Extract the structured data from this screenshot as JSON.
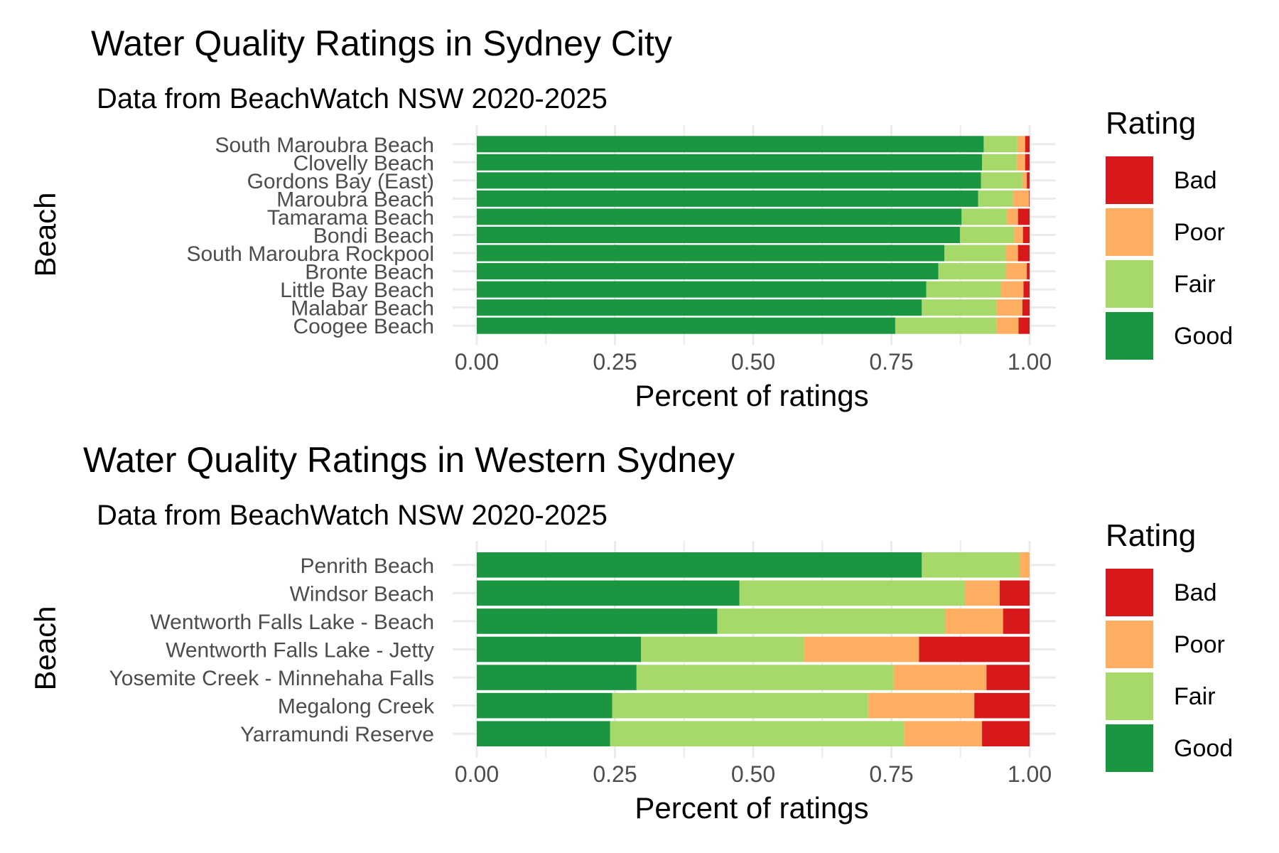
{
  "legend_title": "Rating",
  "categories_order": [
    "Bad",
    "Poor",
    "Fair",
    "Good"
  ],
  "colors": {
    "Good": "#1a9641",
    "Fair": "#a6d96a",
    "Poor": "#fdae61",
    "Bad": "#d7191c",
    "grid": "#ebebeb",
    "tick_text": "#4d4d4d",
    "text": "#000000"
  },
  "chart_data": [
    {
      "type": "bar",
      "orientation": "horizontal",
      "stacked": true,
      "title": "Water Quality Ratings in Sydney City",
      "subtitle": "Data from BeachWatch NSW 2020-2025",
      "xlabel": "Percent of ratings",
      "ylabel": "Beach",
      "xlim": [
        0,
        1
      ],
      "xticks": [
        "0.00",
        "0.25",
        "0.50",
        "0.75",
        "1.00"
      ],
      "grid": true,
      "legend_position": "right",
      "legend": [
        "Bad",
        "Poor",
        "Fair",
        "Good"
      ],
      "categories": [
        "South Maroubra Beach",
        "Clovelly Beach",
        "Gordons Bay (East)",
        "Maroubra Beach",
        "Tamarama Beach",
        "Bondi Beach",
        "South Maroubra Rockpool",
        "Bronte Beach",
        "Little Bay Beach",
        "Malabar Beach",
        "Coogee Beach"
      ],
      "series": [
        {
          "name": "Good",
          "values": [
            0.917,
            0.914,
            0.912,
            0.907,
            0.877,
            0.874,
            0.846,
            0.835,
            0.813,
            0.805,
            0.757
          ]
        },
        {
          "name": "Fair",
          "values": [
            0.061,
            0.063,
            0.075,
            0.063,
            0.082,
            0.098,
            0.111,
            0.122,
            0.135,
            0.135,
            0.183
          ]
        },
        {
          "name": "Poor",
          "values": [
            0.014,
            0.015,
            0.008,
            0.029,
            0.02,
            0.016,
            0.022,
            0.038,
            0.041,
            0.047,
            0.04
          ]
        },
        {
          "name": "Bad",
          "values": [
            0.008,
            0.008,
            0.005,
            0.001,
            0.021,
            0.012,
            0.021,
            0.005,
            0.011,
            0.013,
            0.02
          ]
        }
      ]
    },
    {
      "type": "bar",
      "orientation": "horizontal",
      "stacked": true,
      "title": "Water Quality Ratings in Western Sydney",
      "subtitle": "Data from BeachWatch NSW 2020-2025",
      "xlabel": "Percent of ratings",
      "ylabel": "Beach",
      "xlim": [
        0,
        1
      ],
      "xticks": [
        "0.00",
        "0.25",
        "0.50",
        "0.75",
        "1.00"
      ],
      "grid": true,
      "legend_position": "right",
      "legend": [
        "Bad",
        "Poor",
        "Fair",
        "Good"
      ],
      "categories": [
        "Penrith Beach",
        "Windsor Beach",
        "Wentworth Falls Lake - Beach",
        "Wentworth Falls Lake - Jetty",
        "Yosemite Creek - Minnehaha Falls",
        "Megalong Creek",
        "Yarramundi Reserve"
      ],
      "series": [
        {
          "name": "Good",
          "values": [
            0.805,
            0.475,
            0.435,
            0.297,
            0.289,
            0.245,
            0.241
          ]
        },
        {
          "name": "Fair",
          "values": [
            0.177,
            0.408,
            0.412,
            0.295,
            0.465,
            0.463,
            0.532
          ]
        },
        {
          "name": "Poor",
          "values": [
            0.018,
            0.063,
            0.105,
            0.208,
            0.168,
            0.192,
            0.141
          ]
        },
        {
          "name": "Bad",
          "values": [
            0.0,
            0.054,
            0.048,
            0.2,
            0.078,
            0.1,
            0.086
          ]
        }
      ]
    }
  ]
}
